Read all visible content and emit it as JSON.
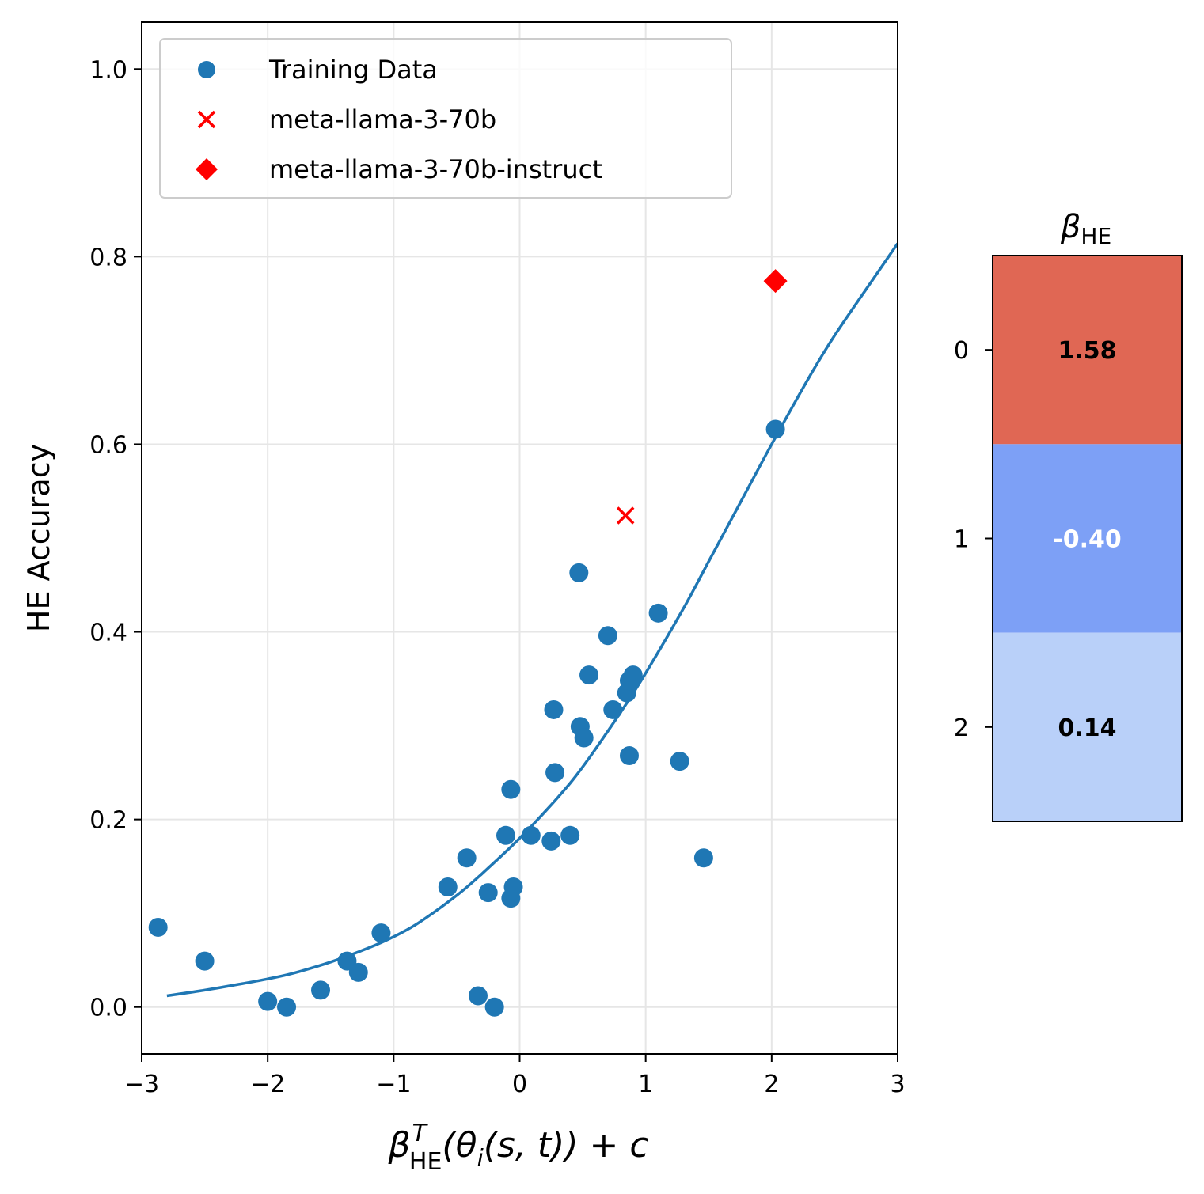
{
  "chart_data": [
    {
      "type": "scatter",
      "xlabel": "β",
      "xlabel_sup": "T",
      "xlabel_sub": "HE",
      "xlabel_rest": "(θ",
      "xlabel_sub_i": "i",
      "xlabel_tail": "(s, t)) + c",
      "ylabel": "HE Accuracy",
      "xlim": [
        -3,
        3
      ],
      "ylim": [
        -0.05,
        1.05
      ],
      "grid": true,
      "legend_position": "top-left",
      "x_ticks": [
        -3,
        -2,
        -1,
        0,
        1,
        2,
        3
      ],
      "x_tick_labels": [
        "−3",
        "−2",
        "−1",
        "0",
        "1",
        "2",
        "3"
      ],
      "y_ticks": [
        0.0,
        0.2,
        0.4,
        0.6,
        0.8,
        1.0
      ],
      "y_tick_labels": [
        "0.0",
        "0.2",
        "0.4",
        "0.6",
        "0.8",
        "1.0"
      ],
      "series": [
        {
          "name": "Training Data",
          "marker": "circle",
          "color": "#1f77b4",
          "points": [
            [
              -2.87,
              0.085
            ],
            [
              -2.5,
              0.049
            ],
            [
              -2.0,
              0.006
            ],
            [
              -1.85,
              0.0
            ],
            [
              -1.58,
              0.018
            ],
            [
              -1.37,
              0.049
            ],
            [
              -1.28,
              0.037
            ],
            [
              -1.1,
              0.079
            ],
            [
              -0.57,
              0.128
            ],
            [
              -0.42,
              0.159
            ],
            [
              -0.33,
              0.012
            ],
            [
              -0.25,
              0.122
            ],
            [
              -0.2,
              0.0
            ],
            [
              -0.11,
              0.183
            ],
            [
              -0.07,
              0.232
            ],
            [
              -0.07,
              0.116
            ],
            [
              -0.05,
              0.128
            ],
            [
              0.09,
              0.183
            ],
            [
              0.25,
              0.177
            ],
            [
              0.27,
              0.317
            ],
            [
              0.28,
              0.25
            ],
            [
              0.4,
              0.183
            ],
            [
              0.47,
              0.463
            ],
            [
              0.48,
              0.299
            ],
            [
              0.51,
              0.287
            ],
            [
              0.55,
              0.354
            ],
            [
              0.7,
              0.396
            ],
            [
              0.74,
              0.317
            ],
            [
              0.85,
              0.335
            ],
            [
              0.87,
              0.348
            ],
            [
              0.87,
              0.268
            ],
            [
              0.9,
              0.354
            ],
            [
              1.1,
              0.42
            ],
            [
              1.27,
              0.262
            ],
            [
              1.46,
              0.159
            ],
            [
              2.03,
              0.616
            ]
          ]
        },
        {
          "name": "meta-llama-3-70b",
          "marker": "x",
          "color": "#ff0000",
          "points": [
            [
              0.84,
              0.524
            ]
          ]
        },
        {
          "name": "meta-llama-3-70b-instruct",
          "marker": "diamond",
          "color": "#ff0000",
          "points": [
            [
              2.03,
              0.774
            ]
          ]
        }
      ],
      "fit_curve": {
        "name": "logistic fit",
        "color": "#1f77b4",
        "x": [
          -2.8,
          -2.5,
          -2.2,
          -2.0,
          -1.8,
          -1.5,
          -1.2,
          -1.0,
          -0.8,
          -0.5,
          -0.3,
          0.0,
          0.3,
          0.5,
          0.8,
          1.0,
          1.3,
          1.5,
          1.8,
          2.0,
          2.3,
          2.5,
          2.8,
          3.0
        ],
        "y": [
          0.012,
          0.018,
          0.025,
          0.03,
          0.036,
          0.048,
          0.063,
          0.075,
          0.09,
          0.119,
          0.142,
          0.18,
          0.223,
          0.256,
          0.314,
          0.356,
          0.425,
          0.475,
          0.55,
          0.6,
          0.672,
          0.716,
          0.775,
          0.814
        ]
      }
    },
    {
      "type": "heatmap",
      "title": "β",
      "title_sub": "HE",
      "row_labels": [
        "0",
        "1",
        "2"
      ],
      "values": [
        1.58,
        -0.4,
        0.14
      ],
      "value_labels": [
        "1.58",
        "-0.40",
        "0.14"
      ],
      "cell_colors": [
        "#e06754",
        "#7da0f6",
        "#b9d0f9"
      ],
      "text_colors": [
        "#000000",
        "#ffffff",
        "#000000"
      ]
    }
  ]
}
